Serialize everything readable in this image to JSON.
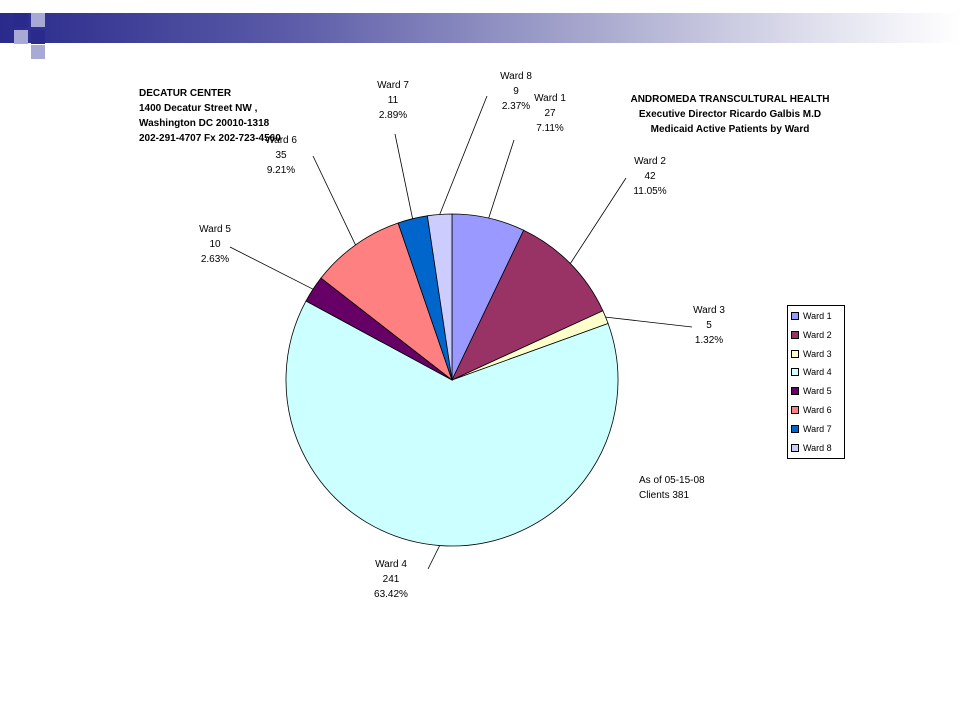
{
  "header_block": [
    "DECATUR CENTER",
    "1400 Decatur Street NW ,",
    "Washington DC 20010-1318",
    "202-291-4707 Fx 202-723-4560"
  ],
  "chart_title": [
    "ANDROMEDA TRANSCULTURAL HEALTH",
    "Executive Director Ricardo Galbis M.D",
    "Medicaid Active Patients by Ward"
  ],
  "note": "As of 05-15-08 Clients 381",
  "colors": {
    "band_start": "#2a2a8c",
    "band_end": "#ffffff",
    "square_dark": "#2a2a8c",
    "square_light": "#a9a9d6"
  },
  "chart_data": {
    "type": "pie",
    "title": "Medicaid Active Patients by Ward",
    "legend_position": "right",
    "slices": [
      {
        "label": "Ward 1",
        "value": 27,
        "percent": "7.11%",
        "color": "#9999ff"
      },
      {
        "label": "Ward 2",
        "value": 42,
        "percent": "11.05%",
        "color": "#993366"
      },
      {
        "label": "Ward 3",
        "value": 5,
        "percent": "1.32%",
        "color": "#ffffcc"
      },
      {
        "label": "Ward 4",
        "value": 241,
        "percent": "63.42%",
        "color": "#ccffff"
      },
      {
        "label": "Ward 5",
        "value": 10,
        "percent": "2.63%",
        "color": "#660066"
      },
      {
        "label": "Ward 6",
        "value": 35,
        "percent": "9.21%",
        "color": "#ff8080"
      },
      {
        "label": "Ward 7",
        "value": 11,
        "percent": "2.89%",
        "color": "#0066cc"
      },
      {
        "label": "Ward 8",
        "value": 9,
        "percent": "2.37%",
        "color": "#ccccff"
      }
    ]
  }
}
